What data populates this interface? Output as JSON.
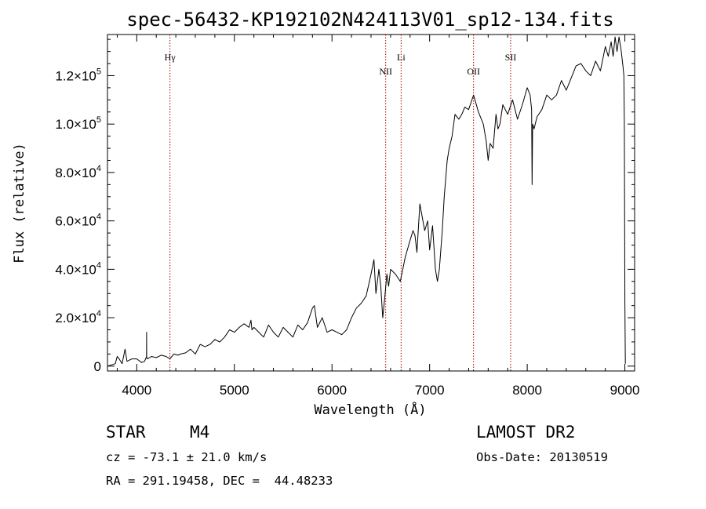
{
  "chart_data": {
    "type": "line",
    "title": "spec-56432-KP192102N424113V01_sp12-134.fits",
    "xlabel": "Wavelength (Å)",
    "ylabel": "Flux (relative)",
    "xlim": [
      3700,
      9100
    ],
    "ylim": [
      -2000,
      137000
    ],
    "x_ticks": [
      4000,
      5000,
      6000,
      7000,
      8000,
      9000
    ],
    "y_ticks": [
      {
        "value": 0,
        "mantissa": "0",
        "exp": ""
      },
      {
        "value": 20000,
        "mantissa": "2.0×10",
        "exp": "4"
      },
      {
        "value": 40000,
        "mantissa": "4.0×10",
        "exp": "4"
      },
      {
        "value": 60000,
        "mantissa": "6.0×10",
        "exp": "4"
      },
      {
        "value": 80000,
        "mantissa": "8.0×10",
        "exp": "4"
      },
      {
        "value": 100000,
        "mantissa": "1.0×10",
        "exp": "5"
      },
      {
        "value": 120000,
        "mantissa": "1.2×10",
        "exp": "5"
      }
    ],
    "grid": false,
    "series": [
      {
        "x": [
          3700,
          3780,
          3800,
          3820,
          3850,
          3880,
          3900,
          3950,
          4000,
          4050,
          4080,
          4100,
          4101,
          4102,
          4110,
          4150,
          4200,
          4250,
          4300,
          4340,
          4380,
          4420,
          4450,
          4500,
          4550,
          4600,
          4650,
          4700,
          4750,
          4800,
          4850,
          4900,
          4950,
          5000,
          5050,
          5100,
          5150,
          5170,
          5180,
          5200,
          5250,
          5300,
          5350,
          5400,
          5450,
          5500,
          5550,
          5600,
          5650,
          5700,
          5750,
          5800,
          5820,
          5850,
          5900,
          5950,
          6000,
          6050,
          6100,
          6150,
          6200,
          6250,
          6300,
          6350,
          6400,
          6430,
          6450,
          6480,
          6500,
          6520,
          6540,
          6562,
          6580,
          6600,
          6650,
          6700,
          6750,
          6800,
          6830,
          6850,
          6870,
          6900,
          6950,
          6980,
          7000,
          7030,
          7060,
          7080,
          7100,
          7130,
          7150,
          7180,
          7200,
          7230,
          7260,
          7300,
          7330,
          7360,
          7400,
          7450,
          7500,
          7550,
          7580,
          7600,
          7620,
          7650,
          7680,
          7700,
          7720,
          7750,
          7800,
          7850,
          7900,
          7950,
          8000,
          8030,
          8045,
          8050,
          8055,
          8070,
          8100,
          8150,
          8200,
          8250,
          8300,
          8350,
          8400,
          8450,
          8500,
          8550,
          8600,
          8650,
          8700,
          8750,
          8800,
          8830,
          8860,
          8880,
          8900,
          8920,
          8940,
          8960,
          8980,
          8990,
          8995,
          9000,
          9005
        ],
        "y": [
          0,
          1000,
          4000,
          3000,
          1000,
          7000,
          2000,
          3000,
          3000,
          1500,
          2000,
          4000,
          14000,
          3500,
          3000,
          4000,
          3500,
          4500,
          4000,
          3000,
          5000,
          4500,
          5000,
          5500,
          7000,
          5000,
          9000,
          8000,
          9000,
          11000,
          10000,
          12000,
          15000,
          14000,
          16000,
          17500,
          16000,
          19000,
          15000,
          16000,
          14000,
          12000,
          17000,
          14000,
          12000,
          16000,
          14000,
          12000,
          17000,
          15000,
          18000,
          24000,
          25000,
          16000,
          20000,
          14000,
          15000,
          14000,
          13000,
          15000,
          20000,
          24000,
          26000,
          29000,
          38000,
          44000,
          30000,
          40000,
          33000,
          20000,
          28000,
          38000,
          33000,
          40000,
          38000,
          35000,
          45000,
          52000,
          56000,
          54000,
          47000,
          67000,
          56000,
          60000,
          48000,
          58000,
          40000,
          35000,
          40000,
          56000,
          70000,
          85000,
          90000,
          95000,
          104000,
          102000,
          104000,
          107000,
          106000,
          112000,
          105000,
          100000,
          93000,
          85000,
          92000,
          90000,
          104000,
          98000,
          100000,
          108000,
          104000,
          110000,
          102000,
          108000,
          115000,
          112000,
          106000,
          75000,
          100000,
          98000,
          103000,
          106000,
          112000,
          110000,
          112000,
          118000,
          114000,
          119000,
          124000,
          125000,
          122000,
          120000,
          126000,
          122000,
          132000,
          128000,
          134000,
          128000,
          136000,
          130000,
          136000,
          131000,
          124000,
          120000,
          100000,
          26000,
          1000
        ]
      }
    ],
    "annotations": [
      {
        "label": "Hγ",
        "x": 4340
      },
      {
        "label": "NII",
        "x": 6550
      },
      {
        "label": "Li",
        "x": 6708
      },
      {
        "label": "OII",
        "x": 7450
      },
      {
        "label": "SII",
        "x": 7830
      }
    ]
  },
  "info": {
    "class": "STAR",
    "subclass": "M4",
    "survey": "LAMOST DR2",
    "cz": "cz = -73.1 ± 21.0 km/s",
    "obs_date": "Obs-Date: 20130519",
    "radec": "RA = 291.19458, DEC =  44.48233"
  }
}
